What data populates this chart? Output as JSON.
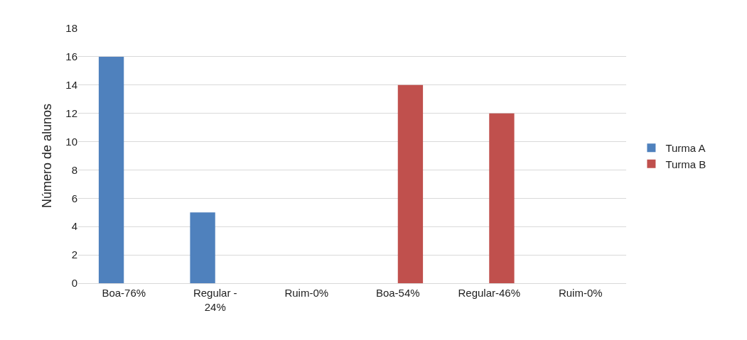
{
  "chart_data": {
    "type": "bar",
    "ylabel": "Número de alunos",
    "categories": [
      "Boa-76%",
      "Regular - 24%",
      "Ruim-0%",
      "Boa-54%",
      "Regular-46%",
      "Ruim-0%"
    ],
    "series": [
      {
        "name": "Turma A",
        "color": "#4f81bd",
        "values": [
          16,
          5,
          0,
          null,
          null,
          null
        ]
      },
      {
        "name": "Turma B",
        "color": "#c0504d",
        "values": [
          null,
          null,
          null,
          14,
          12,
          0
        ]
      }
    ],
    "ylim": [
      0,
      18
    ],
    "yticks": [
      0,
      2,
      4,
      6,
      8,
      10,
      12,
      14,
      16,
      18
    ],
    "grid": "y",
    "legend": "right"
  }
}
